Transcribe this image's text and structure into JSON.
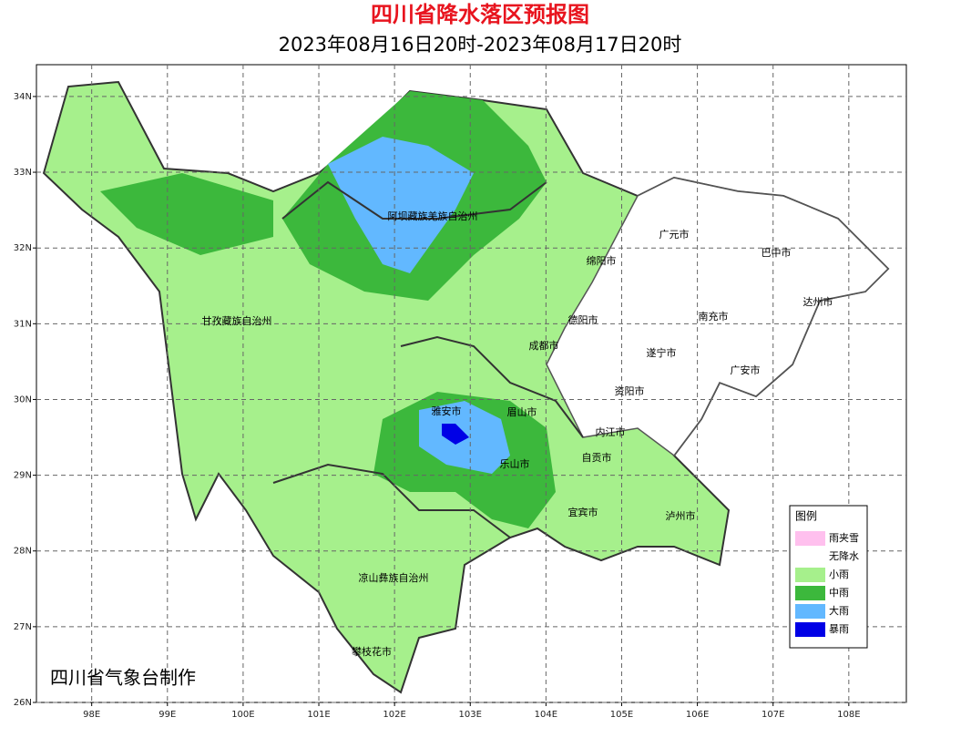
{
  "header": {
    "title": "四川省降水落区预报图",
    "subtitle": "2023年08月16日20时-2023年08月17日20时"
  },
  "map": {
    "xlim": [
      97.27,
      108.76
    ],
    "ylim": [
      26,
      34.42
    ],
    "xticks": [
      {
        "value": 98,
        "label": "98E"
      },
      {
        "value": 99,
        "label": "99E"
      },
      {
        "value": 100,
        "label": "100E"
      },
      {
        "value": 101,
        "label": "101E"
      },
      {
        "value": 102,
        "label": "102E"
      },
      {
        "value": 103,
        "label": "103E"
      },
      {
        "value": 104,
        "label": "104E"
      },
      {
        "value": 105,
        "label": "105E"
      },
      {
        "value": 106,
        "label": "106E"
      },
      {
        "value": 107,
        "label": "107E"
      },
      {
        "value": 108,
        "label": "108E"
      }
    ],
    "yticks": [
      {
        "value": 26,
        "label": "26N"
      },
      {
        "value": 27,
        "label": "27N"
      },
      {
        "value": 28,
        "label": "28N"
      },
      {
        "value": 29,
        "label": "29N"
      },
      {
        "value": 30,
        "label": "30N"
      },
      {
        "value": 31,
        "label": "31N"
      },
      {
        "value": 32,
        "label": "32N"
      },
      {
        "value": 33,
        "label": "33N"
      },
      {
        "value": 34,
        "label": "34N"
      }
    ],
    "grid": true,
    "places": [
      "阿坝藏族羌族自治州",
      "广元市",
      "巴中市",
      "绵阳市",
      "达州市",
      "甘孜藏族自治州",
      "德阳市",
      "南充市",
      "成都市",
      "遂宁市",
      "广安市",
      "资阳市",
      "雅安市",
      "眉山市",
      "内江市",
      "自贡市",
      "乐山市",
      "宜宾市",
      "泸州市",
      "凉山彝族自治州",
      "攀枝花市"
    ],
    "credit": "四川省气象台制作"
  },
  "legend": {
    "title": "图例",
    "items": [
      {
        "label": "雨夹雪",
        "color": "#ffc0ee"
      },
      {
        "label": "无降水",
        "color": "#ffffff"
      },
      {
        "label": "小雨",
        "color": "#a6f08c"
      },
      {
        "label": "中雨",
        "color": "#3cb83c"
      },
      {
        "label": "大雨",
        "color": "#62b8ff"
      },
      {
        "label": "暴雨",
        "color": "#0000e6"
      }
    ]
  }
}
